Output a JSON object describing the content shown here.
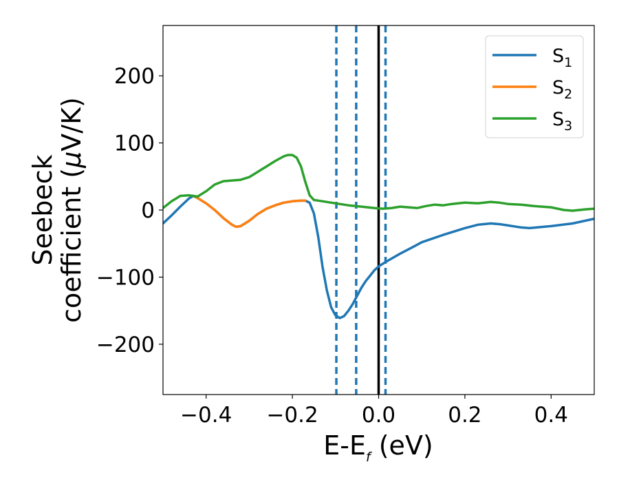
{
  "chart_data": {
    "type": "line",
    "xlabel": {
      "main": "E-E",
      "sub": "f",
      "unit": " (eV)"
    },
    "ylabel": {
      "line1": "Seebeck",
      "line2_prefix": "coefficient  (",
      "line2_mu": "μ",
      "line2_suffix": "V/K)"
    },
    "xlim": [
      -0.5,
      0.5
    ],
    "ylim": [
      -275,
      275
    ],
    "xticks": [
      -0.4,
      -0.2,
      0.0,
      0.2,
      0.4
    ],
    "xtick_labels": [
      "−0.4",
      "−0.2",
      "0.0",
      "0.2",
      "0.4"
    ],
    "yticks": [
      -200,
      -100,
      0,
      100,
      200
    ],
    "ytick_labels": [
      "−200",
      "−100",
      "0",
      "100",
      "200"
    ],
    "legend_position": "top-right",
    "vertical_lines": [
      {
        "x": -0.098,
        "style": "dashed",
        "color": "#1f77b4"
      },
      {
        "x": -0.052,
        "style": "dashed",
        "color": "#1f77b4"
      },
      {
        "x": 0.0,
        "style": "solid",
        "color": "#000000"
      },
      {
        "x": 0.016,
        "style": "dashed",
        "color": "#1f77b4"
      }
    ],
    "series": [
      {
        "name": "S",
        "sub": "1",
        "color": "#1f77b4",
        "points": [
          [
            -0.5,
            -20
          ],
          [
            -0.48,
            -8
          ],
          [
            -0.46,
            5
          ],
          [
            -0.44,
            17
          ],
          [
            -0.43,
            21
          ],
          [
            -0.42,
            18
          ],
          [
            -0.4,
            10
          ],
          [
            -0.38,
            0
          ],
          [
            -0.36,
            -12
          ],
          [
            -0.34,
            -22
          ],
          [
            -0.33,
            -25
          ],
          [
            -0.32,
            -24
          ],
          [
            -0.3,
            -16
          ],
          [
            -0.28,
            -6
          ],
          [
            -0.26,
            2
          ],
          [
            -0.24,
            7
          ],
          [
            -0.22,
            11
          ],
          [
            -0.2,
            13
          ],
          [
            -0.18,
            14
          ],
          [
            -0.17,
            14
          ],
          [
            -0.16,
            11
          ],
          [
            -0.15,
            -5
          ],
          [
            -0.14,
            -40
          ],
          [
            -0.13,
            -85
          ],
          [
            -0.12,
            -120
          ],
          [
            -0.11,
            -145
          ],
          [
            -0.1,
            -157
          ],
          [
            -0.09,
            -161
          ],
          [
            -0.08,
            -158
          ],
          [
            -0.07,
            -150
          ],
          [
            -0.06,
            -140
          ],
          [
            -0.05,
            -128
          ],
          [
            -0.04,
            -116
          ],
          [
            -0.03,
            -106
          ],
          [
            -0.02,
            -98
          ],
          [
            -0.01,
            -90
          ],
          [
            0.0,
            -84
          ],
          [
            0.02,
            -76
          ],
          [
            0.05,
            -65
          ],
          [
            0.08,
            -55
          ],
          [
            0.1,
            -48
          ],
          [
            0.15,
            -37
          ],
          [
            0.2,
            -27
          ],
          [
            0.23,
            -22
          ],
          [
            0.26,
            -20
          ],
          [
            0.28,
            -21
          ],
          [
            0.3,
            -23
          ],
          [
            0.33,
            -26
          ],
          [
            0.35,
            -27
          ],
          [
            0.4,
            -24
          ],
          [
            0.45,
            -20
          ],
          [
            0.5,
            -13
          ]
        ]
      },
      {
        "name": "S",
        "sub": "2",
        "color": "#ff7f0e",
        "points": [
          [
            -0.43,
            21
          ],
          [
            -0.42,
            18
          ],
          [
            -0.4,
            10
          ],
          [
            -0.38,
            0
          ],
          [
            -0.36,
            -12
          ],
          [
            -0.34,
            -22
          ],
          [
            -0.33,
            -25
          ],
          [
            -0.32,
            -24
          ],
          [
            -0.3,
            -16
          ],
          [
            -0.28,
            -6
          ],
          [
            -0.26,
            2
          ],
          [
            -0.24,
            7
          ],
          [
            -0.22,
            11
          ],
          [
            -0.2,
            13
          ],
          [
            -0.18,
            14
          ],
          [
            -0.17,
            14
          ]
        ]
      },
      {
        "name": "S",
        "sub": "3",
        "color": "#2ca02c",
        "points": [
          [
            -0.5,
            3
          ],
          [
            -0.48,
            13
          ],
          [
            -0.46,
            21
          ],
          [
            -0.44,
            22
          ],
          [
            -0.42,
            20
          ],
          [
            -0.4,
            28
          ],
          [
            -0.38,
            38
          ],
          [
            -0.36,
            43
          ],
          [
            -0.34,
            44
          ],
          [
            -0.32,
            45
          ],
          [
            -0.3,
            49
          ],
          [
            -0.28,
            57
          ],
          [
            -0.26,
            65
          ],
          [
            -0.24,
            73
          ],
          [
            -0.22,
            80
          ],
          [
            -0.21,
            82
          ],
          [
            -0.2,
            82
          ],
          [
            -0.19,
            78
          ],
          [
            -0.18,
            65
          ],
          [
            -0.17,
            42
          ],
          [
            -0.16,
            22
          ],
          [
            -0.15,
            15
          ],
          [
            -0.13,
            13
          ],
          [
            -0.1,
            10
          ],
          [
            -0.07,
            7
          ],
          [
            -0.04,
            5
          ],
          [
            -0.01,
            3
          ],
          [
            0.01,
            2
          ],
          [
            0.03,
            3
          ],
          [
            0.05,
            5
          ],
          [
            0.07,
            4
          ],
          [
            0.09,
            3
          ],
          [
            0.11,
            6
          ],
          [
            0.13,
            8
          ],
          [
            0.15,
            7
          ],
          [
            0.17,
            9
          ],
          [
            0.2,
            11
          ],
          [
            0.23,
            10
          ],
          [
            0.26,
            12
          ],
          [
            0.28,
            11
          ],
          [
            0.3,
            9
          ],
          [
            0.33,
            8
          ],
          [
            0.36,
            6
          ],
          [
            0.4,
            4
          ],
          [
            0.43,
            0
          ],
          [
            0.45,
            -1
          ],
          [
            0.48,
            1
          ],
          [
            0.5,
            2
          ]
        ]
      }
    ]
  }
}
